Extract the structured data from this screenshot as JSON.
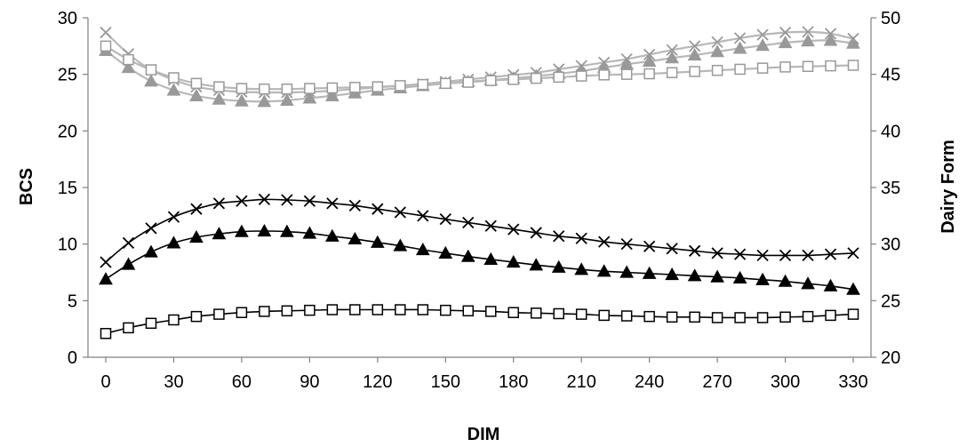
{
  "chart_data": {
    "type": "line",
    "xlabel": "DIM",
    "ylabel": "BCS",
    "y2label": "Dairy Form",
    "xlim": [
      0,
      330
    ],
    "ylim": [
      0,
      30
    ],
    "y2lim": [
      20,
      50
    ],
    "xticks": [
      0,
      30,
      60,
      90,
      120,
      150,
      180,
      210,
      240,
      270,
      300,
      330
    ],
    "yticks": [
      0,
      5,
      10,
      15,
      20,
      25,
      30
    ],
    "y2ticks": [
      20,
      25,
      30,
      35,
      40,
      45,
      50
    ],
    "grid": false,
    "legend": "none",
    "x": [
      0,
      10,
      20,
      30,
      40,
      50,
      60,
      70,
      80,
      90,
      100,
      110,
      120,
      130,
      140,
      150,
      160,
      170,
      180,
      190,
      200,
      210,
      220,
      230,
      240,
      250,
      260,
      270,
      280,
      290,
      300,
      310,
      320,
      330
    ],
    "series": [
      {
        "axis": "left",
        "marker": "cross",
        "color": "#000000",
        "values": [
          8.4,
          10.1,
          11.4,
          12.4,
          13.1,
          13.6,
          13.8,
          13.95,
          13.9,
          13.8,
          13.6,
          13.4,
          13.1,
          12.8,
          12.5,
          12.2,
          11.9,
          11.6,
          11.3,
          11.0,
          10.7,
          10.5,
          10.2,
          10.0,
          9.8,
          9.6,
          9.4,
          9.2,
          9.1,
          9.0,
          9.0,
          9.0,
          9.1,
          9.2
        ]
      },
      {
        "axis": "left",
        "marker": "triangle",
        "color": "#000000",
        "values": [
          6.9,
          8.2,
          9.3,
          10.1,
          10.6,
          10.9,
          11.1,
          11.15,
          11.1,
          10.95,
          10.7,
          10.45,
          10.15,
          9.85,
          9.5,
          9.2,
          8.9,
          8.65,
          8.4,
          8.15,
          7.95,
          7.75,
          7.6,
          7.5,
          7.4,
          7.3,
          7.2,
          7.1,
          7.0,
          6.85,
          6.7,
          6.5,
          6.3,
          6.0
        ]
      },
      {
        "axis": "left",
        "marker": "square",
        "color": "#000000",
        "values": [
          2.1,
          2.6,
          3.0,
          3.3,
          3.6,
          3.8,
          3.95,
          4.05,
          4.1,
          4.15,
          4.2,
          4.2,
          4.2,
          4.2,
          4.2,
          4.15,
          4.1,
          4.05,
          3.95,
          3.9,
          3.85,
          3.8,
          3.7,
          3.65,
          3.6,
          3.55,
          3.55,
          3.5,
          3.5,
          3.5,
          3.55,
          3.6,
          3.7,
          3.8
        ]
      },
      {
        "axis": "right",
        "marker": "cross",
        "color": "#999999",
        "values": [
          48.7,
          46.8,
          45.4,
          44.5,
          43.9,
          43.6,
          43.45,
          43.4,
          43.4,
          43.45,
          43.55,
          43.7,
          43.85,
          44.0,
          44.15,
          44.35,
          44.55,
          44.75,
          44.95,
          45.15,
          45.45,
          45.75,
          46.05,
          46.35,
          46.75,
          47.15,
          47.5,
          47.85,
          48.2,
          48.5,
          48.7,
          48.75,
          48.6,
          48.15
        ]
      },
      {
        "axis": "right",
        "marker": "triangle",
        "color": "#999999",
        "values": [
          47.1,
          45.6,
          44.4,
          43.6,
          43.1,
          42.8,
          42.65,
          42.6,
          42.7,
          42.9,
          43.1,
          43.35,
          43.6,
          43.8,
          44.0,
          44.2,
          44.35,
          44.5,
          44.65,
          44.85,
          45.05,
          45.3,
          45.6,
          45.9,
          46.15,
          46.45,
          46.7,
          47.0,
          47.3,
          47.55,
          47.8,
          47.95,
          48.0,
          47.75
        ]
      },
      {
        "axis": "right",
        "marker": "square",
        "color": "#999999",
        "values": [
          47.5,
          46.3,
          45.4,
          44.7,
          44.2,
          43.9,
          43.75,
          43.7,
          43.7,
          43.75,
          43.8,
          43.85,
          43.9,
          44.0,
          44.1,
          44.2,
          44.3,
          44.45,
          44.55,
          44.65,
          44.75,
          44.85,
          44.95,
          45.0,
          45.05,
          45.15,
          45.25,
          45.35,
          45.45,
          45.55,
          45.65,
          45.7,
          45.75,
          45.8
        ]
      }
    ]
  }
}
